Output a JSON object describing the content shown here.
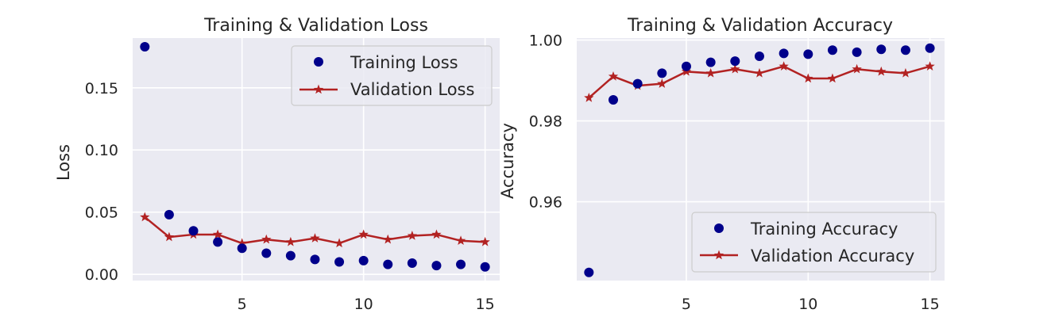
{
  "colors": {
    "training": "#00008b",
    "validation": "#b22222",
    "plot_bg": "#eaeaf2",
    "grid": "#ffffff",
    "text": "#262626"
  },
  "chart_data": [
    {
      "type": "scatter+line",
      "title": "Training & Validation Loss",
      "xlabel": "",
      "ylabel": "Loss",
      "xlim": [
        0.5,
        15.6
      ],
      "ylim": [
        -0.005,
        0.19
      ],
      "xticks": [
        5,
        10,
        15
      ],
      "xtick_labels": [
        "5",
        "10",
        "15"
      ],
      "yticks": [
        0.0,
        0.05,
        0.1,
        0.15
      ],
      "ytick_labels": [
        "0.00",
        "0.05",
        "0.10",
        "0.15"
      ],
      "grid": true,
      "legend_position": "top-right",
      "x": [
        1,
        2,
        3,
        4,
        5,
        6,
        7,
        8,
        9,
        10,
        11,
        12,
        13,
        14,
        15
      ],
      "series": [
        {
          "name": "Training Loss",
          "style": "dots",
          "values": [
            0.183,
            0.048,
            0.035,
            0.026,
            0.021,
            0.017,
            0.015,
            0.012,
            0.01,
            0.011,
            0.008,
            0.009,
            0.007,
            0.008,
            0.006
          ]
        },
        {
          "name": "Validation Loss",
          "style": "line-star",
          "values": [
            0.046,
            0.03,
            0.032,
            0.032,
            0.025,
            0.028,
            0.026,
            0.029,
            0.025,
            0.032,
            0.028,
            0.031,
            0.032,
            0.027,
            0.026
          ]
        }
      ]
    },
    {
      "type": "scatter+line",
      "title": "Training & Validation Accuracy",
      "xlabel": "",
      "ylabel": "Accuracy",
      "xlim": [
        0.5,
        15.6
      ],
      "ylim": [
        0.9405,
        1.0005
      ],
      "xticks": [
        5,
        10,
        15
      ],
      "xtick_labels": [
        "5",
        "10",
        "15"
      ],
      "yticks": [
        0.96,
        0.98,
        1.0
      ],
      "ytick_labels": [
        "0.96",
        "0.98",
        "1.00"
      ],
      "grid": true,
      "legend_position": "bottom-right",
      "x": [
        1,
        2,
        3,
        4,
        5,
        6,
        7,
        8,
        9,
        10,
        11,
        12,
        13,
        14,
        15
      ],
      "series": [
        {
          "name": "Training Accuracy",
          "style": "dots",
          "values": [
            0.9425,
            0.9852,
            0.9892,
            0.9918,
            0.9935,
            0.9945,
            0.9948,
            0.996,
            0.9967,
            0.9965,
            0.9975,
            0.997,
            0.9977,
            0.9975,
            0.998
          ]
        },
        {
          "name": "Validation Accuracy",
          "style": "line-star",
          "values": [
            0.9857,
            0.991,
            0.9887,
            0.9892,
            0.9922,
            0.9918,
            0.9928,
            0.9918,
            0.9935,
            0.9905,
            0.9905,
            0.9928,
            0.9922,
            0.9918,
            0.9935
          ]
        }
      ]
    }
  ]
}
